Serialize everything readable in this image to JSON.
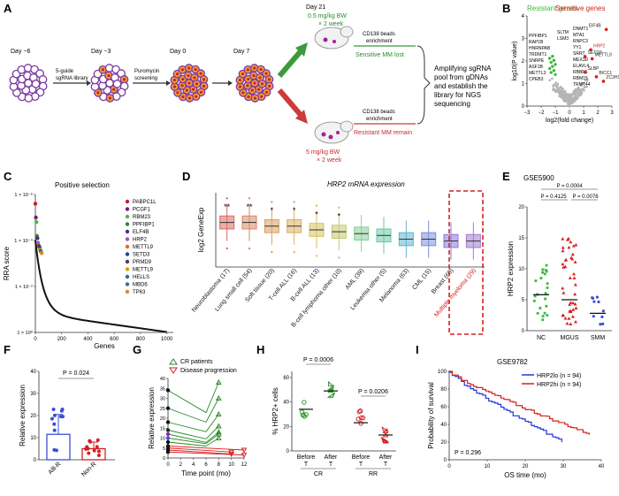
{
  "panels": [
    "A",
    "B",
    "C",
    "D",
    "E",
    "F",
    "G",
    "H",
    "I"
  ],
  "panel_a": {
    "days": [
      "Day −6",
      "Day −3",
      "Day 0",
      "Day 7",
      "Day 21"
    ],
    "library_label": "sgRNA library",
    "library_prefix": "5-guide",
    "puro_label": "Puromycin",
    "puro_sub": "screening",
    "dose_low": "0.5 mg/kg BW",
    "dose_low_freq": "× 2 week",
    "dose_high": "5 mg/kg BW",
    "dose_high_freq": "× 2 week",
    "beads_top": "CD138 beads",
    "beads_top2": "enrichment",
    "sensitive_lost": "Sensitive MM lost",
    "beads_bot": "CD138 beads",
    "beads_bot2": "enrichment",
    "resistant_remain": "Resistant MM remain",
    "summary": [
      "Amplifying sgRNA",
      "pool from gDNAs",
      "and establish the",
      "library for NGS",
      "sequencing"
    ]
  },
  "panel_b": {
    "resistant_title": "Resistant genes",
    "sensitive_title": "Sensitive genes",
    "xlabel": "log2(fold change)",
    "ylabel": "log10(P value)",
    "xticks": [
      "−3",
      "−2",
      "−1",
      "0",
      "1",
      "2",
      "3"
    ],
    "yticks": [
      "0",
      "1",
      "2",
      "3",
      "4"
    ],
    "resistant_labels": [
      "PPFIBP1",
      "RAP1B",
      "HNRNPAB",
      "TRDMT1",
      "SNRPE",
      "ASF1B",
      "METTL3",
      "CPEB3",
      "SLTM",
      "LSM3",
      "DNMT1",
      "MTA1",
      "RNPC3",
      "YY1",
      "SRRT",
      "MEX3D",
      "ELAVL4",
      "RBBP5",
      "RBM15",
      "TRMT44"
    ],
    "sensitive_labels": [
      "EIF4B",
      "HRP2",
      "SETD3",
      "METTL9",
      "SLBP",
      "BICC1",
      "ZC3H11A"
    ],
    "colors": {
      "resistant": "#3cb83c",
      "sensitive": "#d62020",
      "other": "#b5b5b5"
    }
  },
  "panel_c": {
    "title": "Positive selection",
    "ylabel": "RRA score",
    "xlabel": "Genes",
    "xticks": [
      "0",
      "200",
      "400",
      "600",
      "800",
      "1000"
    ],
    "yticks": [
      "1 × 10⁻⁶",
      "1 × 10⁻⁴",
      "1 × 10⁻²",
      "1 × 10⁰"
    ],
    "genes": [
      "PABPC1L",
      "PCGF1",
      "RBM23",
      "PPFIBP1",
      "ELF4B",
      "HRP2",
      "METTL9",
      "SETD3",
      "PRMD9",
      "METTL9",
      "HELLS",
      "MBD6",
      "TP63"
    ],
    "gene_colors": [
      "#c21d2a",
      "#7b1a6e",
      "#4cb748",
      "#2b8a2b",
      "#4a2a8a",
      "#8a5cd6",
      "#e06a20",
      "#2a3d8f",
      "#444444",
      "#d1a200",
      "#3a5fa8",
      "#2b7d6b",
      "#e0882a"
    ]
  },
  "panel_d": {
    "title": "HRP2 mRNA expression",
    "ylabel": "log2 GeneExp",
    "categories": [
      "Neuroblastoma (17)",
      "Lung small cell (54)",
      "Soft tissue (20)",
      "T-cell ALL (16)",
      "B-cell ALL (13)",
      "B-cell lymphoma other (10)",
      "AML (39)",
      "Leukemia other (5)",
      "Melanoma (63)",
      "CML (15)",
      "Breast (60)",
      "Multiple myeloma (29)"
    ],
    "stars": [
      "**",
      "**",
      "*",
      "*",
      "*",
      "*",
      "",
      "",
      "",
      "",
      "",
      ""
    ],
    "box_colors": [
      "#d96b62",
      "#d98a62",
      "#d99f62",
      "#d9b062",
      "#d9c262",
      "#c6c870",
      "#86cf9a",
      "#6cc9a6",
      "#62b5cf",
      "#7a8fd8",
      "#8a78d8",
      "#a27ad2"
    ],
    "highlight": "Multiple myeloma (29)"
  },
  "panel_e": {
    "dataset": "GSE5900",
    "ylabel": "HRP2 expression",
    "groups": [
      "NC",
      "MGUS",
      "SMM"
    ],
    "pvals": [
      "P = 0.0004",
      "P = 0.4125",
      "P = 0.0076"
    ],
    "yticks": [
      "0",
      "5",
      "10",
      "15",
      "20"
    ],
    "colors": [
      "#3cb83c",
      "#d62020",
      "#3b4fd6"
    ],
    "means": [
      5.8,
      5.0,
      2.8
    ]
  },
  "panel_f": {
    "ylabel": "Relative expression",
    "groups": [
      "Alll-R",
      "Non-R"
    ],
    "pval": "P = 0.024",
    "yticks": [
      "0",
      "10",
      "20",
      "30",
      "40"
    ],
    "means": [
      11.5,
      5.0
    ],
    "colors": [
      "#3b4fd6",
      "#d62020"
    ]
  },
  "panel_g": {
    "legend": [
      "CR patients",
      "Disease progression"
    ],
    "ylabel": "Relative expression",
    "xlabel": "Time point (mo)",
    "xticks": [
      "0",
      "2",
      "4",
      "6",
      "8",
      "10",
      "12"
    ],
    "yticks": [
      "0",
      "5",
      "10",
      "15",
      "20",
      "25",
      "30",
      "35",
      "40"
    ]
  },
  "panel_h": {
    "ylabel": "% HRP2+ cells",
    "xticks": [
      "Before T",
      "After T",
      "Before T",
      "After T"
    ],
    "groups": [
      "CR",
      "RR"
    ],
    "pvals": [
      "P = 0.0006",
      "P = 0.0206"
    ],
    "yticks": [
      "0",
      "20",
      "40",
      "60"
    ]
  },
  "panel_i": {
    "dataset": "GSE9782",
    "legend_lo": "HRP2lo (n = 94)",
    "legend_hi": "HRP2hi (n = 94)",
    "pval": "P = 0.296",
    "xlabel": "OS time (mo)",
    "ylabel": "Probability of survival",
    "xticks": [
      "0",
      "10",
      "20",
      "30",
      "40"
    ],
    "yticks": [
      "0",
      "20",
      "40",
      "60",
      "80",
      "100"
    ]
  }
}
